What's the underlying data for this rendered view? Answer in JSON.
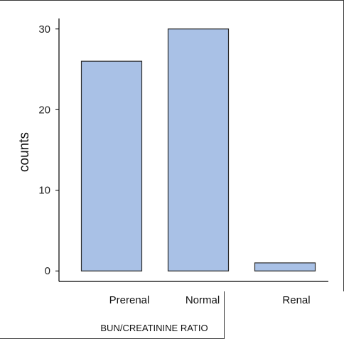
{
  "chart_data": {
    "type": "bar",
    "categories": [
      "Prerenal",
      "Normal",
      "Renal"
    ],
    "values": [
      26,
      30,
      1
    ],
    "title": "",
    "xlabel": "BUN/CREATININE RATIO",
    "ylabel": "counts",
    "ylim": [
      -1.3,
      31.3
    ],
    "yticks": [
      0,
      10,
      20,
      30
    ],
    "grid": false,
    "bar_color": "#a9c1e6",
    "bar_edge_color": "#2b2b2b"
  }
}
